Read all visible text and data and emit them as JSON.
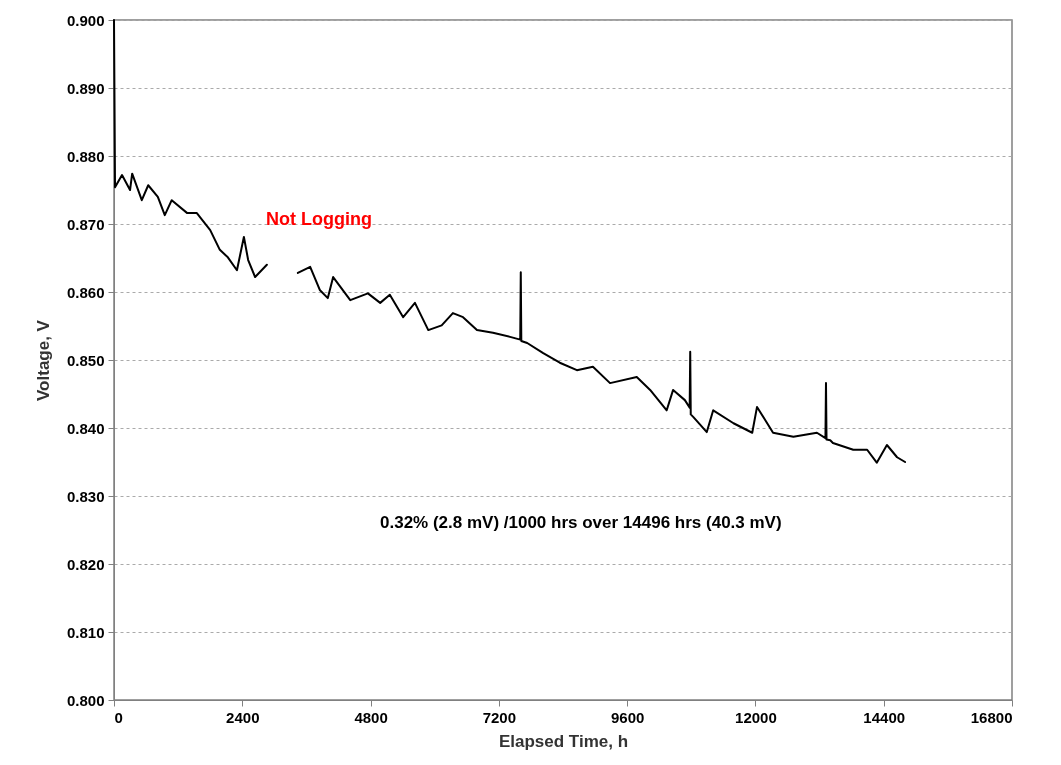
{
  "chart_data": {
    "type": "line",
    "xlabel": "Elapsed Time, h",
    "ylabel": "Voltage, V",
    "x": [
      0,
      19,
      150,
      300,
      340,
      520,
      640,
      820,
      950,
      1080,
      1370,
      1550,
      1800,
      1980,
      2130,
      2300,
      2430,
      2510,
      2640,
      2860,
      3150,
      3440,
      3670,
      3850,
      4000,
      4100,
      4420,
      4750,
      4980,
      5160,
      5410,
      5630,
      5880,
      6130,
      6340,
      6530,
      6790,
      7090,
      7410,
      7600,
      7610,
      7620,
      7730,
      8030,
      8340,
      8660,
      8960,
      9280,
      9780,
      10030,
      10340,
      10460,
      10680,
      10770,
      10780,
      10790,
      10840,
      11090,
      11210,
      11590,
      11940,
      12030,
      12330,
      12710,
      13150,
      13310,
      13320,
      13330,
      13400,
      13450,
      13830,
      14090,
      14270,
      14460,
      14650,
      14800
    ],
    "series": [
      {
        "color": "#000000",
        "values": [
          0.9,
          0.8754,
          0.8772,
          0.875,
          0.8774,
          0.8735,
          0.8757,
          0.874,
          0.8713,
          0.8735,
          0.8716,
          0.8716,
          0.8691,
          0.8662,
          0.8651,
          0.8632,
          0.8681,
          0.8647,
          0.8622,
          0.864,
          null,
          0.8628,
          0.8637,
          0.8603,
          0.8591,
          0.8622,
          0.8588,
          0.8598,
          0.8584,
          0.8596,
          0.8563,
          0.8584,
          0.8544,
          0.8551,
          0.8569,
          0.8563,
          0.8544,
          0.854,
          0.8534,
          0.853,
          0.8629,
          0.8528,
          0.8525,
          0.851,
          0.8496,
          0.8485,
          0.849,
          0.8466,
          0.8475,
          0.8456,
          0.8426,
          0.8456,
          0.8441,
          0.843,
          0.8512,
          0.842,
          0.8416,
          0.8394,
          0.8426,
          0.8407,
          0.8393,
          0.8431,
          0.8393,
          0.8387,
          0.8393,
          0.8385,
          0.8466,
          0.8383,
          0.8382,
          0.8378,
          0.8368,
          0.8368,
          0.8349,
          0.8375,
          0.8357,
          0.835
        ]
      }
    ],
    "xlim": [
      0,
      16800
    ],
    "xticks": [
      0,
      2400,
      4800,
      7200,
      9600,
      12000,
      14400,
      16800
    ],
    "ylim": [
      0.8,
      0.9
    ],
    "yticks": [
      {
        "value": 0.8,
        "label": "0.800"
      },
      {
        "value": 0.81,
        "label": "0.810"
      },
      {
        "value": 0.82,
        "label": "0.820"
      },
      {
        "value": 0.83,
        "label": "0.830"
      },
      {
        "value": 0.84,
        "label": "0.840"
      },
      {
        "value": 0.85,
        "label": "0.850"
      },
      {
        "value": 0.86,
        "label": "0.860"
      },
      {
        "value": 0.87,
        "label": "0.870"
      },
      {
        "value": 0.88,
        "label": "0.880"
      },
      {
        "value": 0.89,
        "label": "0.890"
      },
      {
        "value": 0.9,
        "label": "0.900"
      }
    ],
    "grid": "y",
    "line_style": "solid",
    "marker": "none",
    "annotations": [
      "Not Logging",
      "0.32%  (2.8 mV) /1000 hrs over 14496 hrs (40.3 mV)"
    ]
  }
}
